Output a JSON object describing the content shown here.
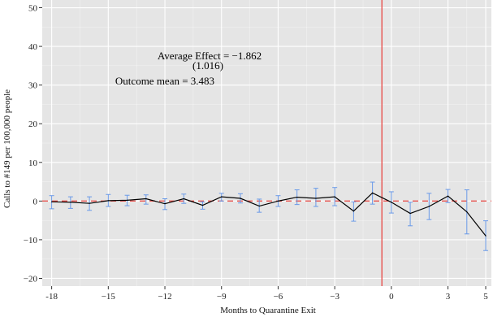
{
  "chart_data": {
    "type": "line",
    "title": "",
    "xlabel": "Months to Quarantine Exit",
    "ylabel": "Calls to #149 per 100,000 people",
    "xlim": [
      -18.5,
      5.3
    ],
    "ylim": [
      -22,
      52
    ],
    "xticks": [
      -18,
      -15,
      -12,
      -9,
      -6,
      -3,
      0,
      3,
      5
    ],
    "xtick_labels": [
      "-18",
      "−15",
      "−12",
      "−9",
      "−6",
      "−3",
      "0",
      "3",
      "5"
    ],
    "yticks": [
      -20,
      -10,
      0,
      10,
      20,
      30,
      40,
      50
    ],
    "ytick_labels": [
      "−20",
      "−10",
      "0",
      "10",
      "20",
      "30",
      "40",
      "50"
    ],
    "grid": true,
    "vertical_line_x": -0.5,
    "reference_line_y": 0,
    "series": [
      {
        "x": [
          -18,
          -17,
          -16,
          -15,
          -14,
          -13,
          -12,
          -11,
          -10,
          -9,
          -8,
          -7,
          -6,
          -5,
          -4,
          -3,
          -2,
          -1,
          0,
          1,
          2,
          3,
          4,
          5
        ],
        "y": [
          -0.2,
          -0.3,
          -0.6,
          0.1,
          0.2,
          0.6,
          -0.7,
          0.6,
          -1.1,
          1.1,
          0.7,
          -1.3,
          0.0,
          1.0,
          0.7,
          1.1,
          -2.6,
          2.1,
          -0.3,
          -3.2,
          -1.4,
          1.3,
          -2.8,
          -9.0
        ],
        "ci_lower": [
          -2.0,
          -1.9,
          -2.4,
          -1.4,
          -1.2,
          -0.8,
          -2.2,
          -0.6,
          -2.1,
          0.0,
          -0.5,
          -2.9,
          -1.4,
          -0.9,
          -1.4,
          -1.2,
          -5.2,
          -0.8,
          -3.1,
          -6.4,
          -4.8,
          -0.4,
          -8.5,
          -12.8
        ],
        "ci_upper": [
          1.4,
          1.1,
          1.1,
          1.7,
          1.5,
          1.6,
          0.6,
          1.8,
          -0.2,
          2.0,
          1.9,
          0.5,
          1.4,
          2.9,
          3.3,
          3.5,
          -0.2,
          4.9,
          2.4,
          -0.3,
          2.0,
          3.0,
          2.9,
          -5.1
        ]
      }
    ],
    "annotations": [
      "Average Effect = −1.862",
      "(1.016)",
      "Outcome mean = 3.483"
    ],
    "colors": {
      "panel": "#e5e5e5",
      "grid": "#ffffff",
      "line": "#000000",
      "errorbar": "#6a9ae8",
      "vline": "#e8534f",
      "hline": "#e8534f"
    }
  }
}
